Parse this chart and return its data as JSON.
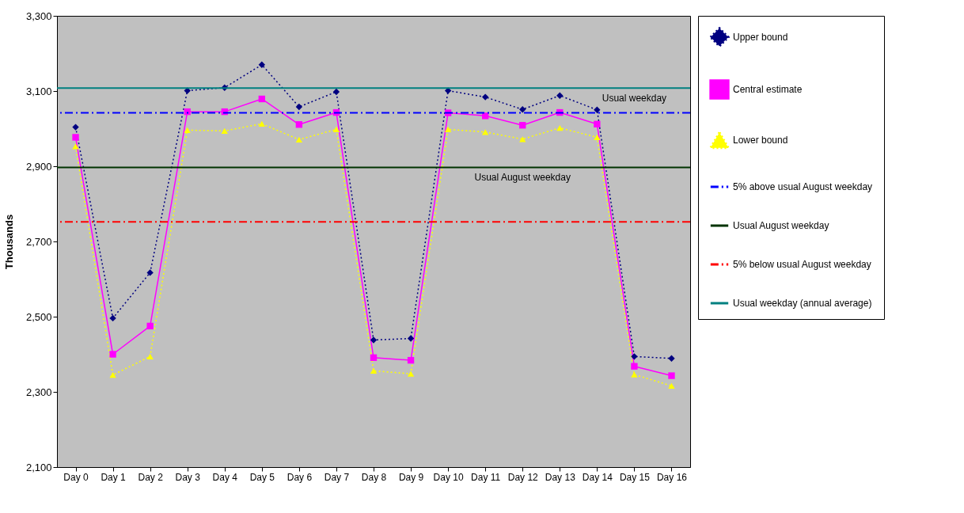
{
  "chart_data": {
    "type": "line",
    "ylabel": "Thousands",
    "categories": [
      "Day 0",
      "Day 1",
      "Day 2",
      "Day 3",
      "Day 4",
      "Day 5",
      "Day 6",
      "Day 7",
      "Day 8",
      "Day 9",
      "Day 10",
      "Day 11",
      "Day 12",
      "Day 13",
      "Day 14",
      "Day 15",
      "Day 16"
    ],
    "series": [
      {
        "name": "Upper bound",
        "color": "#000080",
        "marker": "diamond",
        "line_style": "dotted",
        "values": [
          3004,
          2496,
          2617,
          3101,
          3109,
          3170,
          3058,
          3098,
          2438,
          2442,
          3101,
          3084,
          3051,
          3088,
          3050,
          2394,
          2389
        ]
      },
      {
        "name": "Central estimate",
        "color": "#ff00ff",
        "marker": "square",
        "line_style": "solid",
        "values": [
          2977,
          2400,
          2475,
          3045,
          3045,
          3079,
          3011,
          3043,
          2391,
          2384,
          3042,
          3034,
          3009,
          3043,
          3012,
          2368,
          2343
        ]
      },
      {
        "name": "Lower bound",
        "color": "#ffff00",
        "marker": "triangle",
        "line_style": "dotted",
        "values": [
          2953,
          2345,
          2394,
          2996,
          2994,
          3013,
          2971,
          2998,
          2356,
          2348,
          2998,
          2991,
          2972,
          3002,
          2977,
          2346,
          2316
        ]
      }
    ],
    "ref_lines": [
      {
        "axis": "y",
        "value": 3042,
        "label": "5% above usual August weekday",
        "color": "#0000ff",
        "line_style": "dashed"
      },
      {
        "axis": "y",
        "value": 2897,
        "label": "Usual August weekday",
        "color": "#003300",
        "line_style": "solid"
      },
      {
        "axis": "y",
        "value": 2752,
        "label": "5% below usual August weekday",
        "color": "#ff0000",
        "line_style": "dashed"
      },
      {
        "axis": "y",
        "value": 3108,
        "label": "Usual weekday (annual average)",
        "color": "#008080",
        "line_style": "solid"
      }
    ],
    "annotations": [
      {
        "text": "Usual weekday",
        "x": "Day 15",
        "y": 3108
      },
      {
        "text": "Usual August weekday",
        "x": "Day 12",
        "y": 2897
      }
    ],
    "ylim": [
      2100,
      3300
    ],
    "yticks": [
      {
        "value": 2100,
        "label": "2,100"
      },
      {
        "value": 2300,
        "label": "2,300"
      },
      {
        "value": 2500,
        "label": "2,500"
      },
      {
        "value": 2700,
        "label": "2,700"
      },
      {
        "value": 2900,
        "label": "2,900"
      },
      {
        "value": 3100,
        "label": "3,100"
      },
      {
        "value": 3300,
        "label": "3,300"
      }
    ],
    "grid": false,
    "legend": "right"
  }
}
